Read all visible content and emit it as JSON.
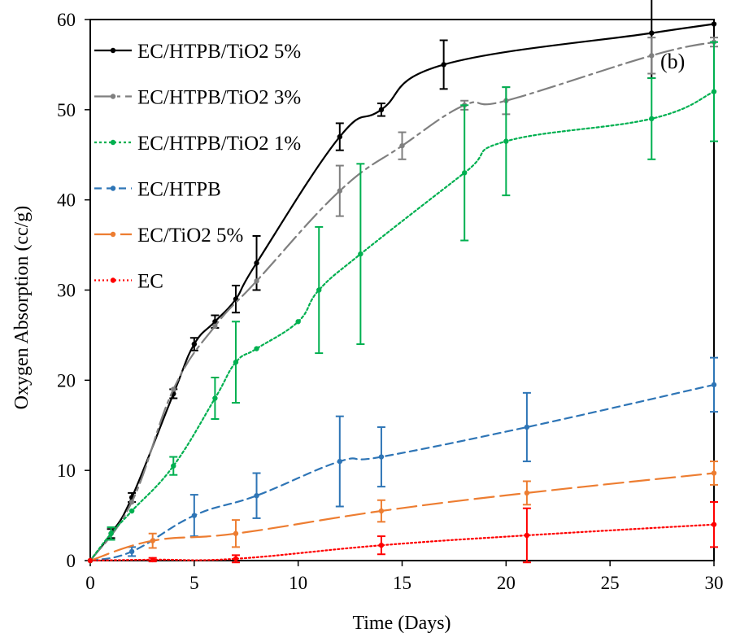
{
  "chart_data": {
    "type": "line",
    "title": "",
    "xlabel": "Time (Days)",
    "ylabel": "Oxygen Absorption (cc/g)",
    "xlim": [
      0,
      30
    ],
    "ylim": [
      0,
      60
    ],
    "xticks": [
      0,
      5,
      10,
      15,
      20,
      25,
      30
    ],
    "yticks": [
      0,
      10,
      20,
      30,
      40,
      50,
      60
    ],
    "grid": false,
    "legend_position": "top-left",
    "annotation": "(b)",
    "series": [
      {
        "name": "EC/HTPB/TiO2 5%",
        "color": "#000000",
        "dash": "",
        "marker": "circle",
        "x": [
          0,
          1,
          2,
          4,
          5,
          6,
          7,
          8,
          12,
          14,
          17,
          27,
          30
        ],
        "y": [
          0,
          3,
          7,
          18.5,
          24,
          26.5,
          29,
          33,
          47,
          50,
          55,
          58.5,
          59.5
        ],
        "err": [
          0,
          0.5,
          0.5,
          0.5,
          0.7,
          0.7,
          1.5,
          3,
          1.5,
          0.7,
          2.7,
          5,
          0
        ],
        "errbars": [
          false,
          true,
          true,
          true,
          true,
          true,
          true,
          true,
          true,
          true,
          true,
          true,
          false
        ]
      },
      {
        "name": "EC/HTPB/TiO2 3%",
        "color": "#7f7f7f",
        "dash": "22,6,4,6",
        "marker": "circle",
        "x": [
          0,
          2,
          4,
          6,
          8,
          12,
          15,
          18,
          20,
          27,
          30
        ],
        "y": [
          0,
          6.5,
          19,
          26,
          31,
          41,
          46,
          50.5,
          51,
          56,
          57.5
        ],
        "err": [
          0,
          0.3,
          0.3,
          0.7,
          1,
          2.8,
          1.5,
          0.5,
          1.5,
          2,
          0.5
        ],
        "errbars": [
          false,
          false,
          false,
          false,
          false,
          true,
          true,
          true,
          true,
          true,
          true
        ]
      },
      {
        "name": "EC/HTPB/TiO2 1%",
        "color": "#00b050",
        "dash": "3,3",
        "marker": "circle",
        "x": [
          0,
          1,
          2,
          4,
          6,
          7,
          8,
          10,
          11,
          13,
          18,
          20,
          27,
          30
        ],
        "y": [
          0,
          3,
          5.5,
          10.5,
          18,
          22,
          23.5,
          26.5,
          30,
          34,
          43,
          46.5,
          49,
          52
        ],
        "err": [
          0,
          0.7,
          0.5,
          1,
          2.3,
          4.5,
          0,
          0,
          7,
          10,
          7.5,
          6,
          4.5,
          5.5
        ],
        "errbars": [
          false,
          true,
          false,
          true,
          true,
          true,
          false,
          false,
          true,
          true,
          true,
          true,
          true,
          true
        ]
      },
      {
        "name": "EC/HTPB",
        "color": "#2e75b6",
        "dash": "9,6",
        "marker": "circle",
        "x": [
          0,
          2,
          5,
          8,
          12,
          14,
          21,
          30
        ],
        "y": [
          0,
          1,
          5,
          7.2,
          11,
          11.5,
          14.8,
          19.5
        ],
        "err": [
          0,
          0.5,
          2.3,
          2.5,
          5,
          3.3,
          3.8,
          3
        ],
        "errbars": [
          false,
          true,
          true,
          true,
          true,
          true,
          true,
          true
        ]
      },
      {
        "name": "EC/TiO2 5%",
        "color": "#ed7d31",
        "dash": "24,8",
        "marker": "circle",
        "x": [
          0,
          3,
          7,
          14,
          21,
          30
        ],
        "y": [
          0,
          2.2,
          3,
          5.5,
          7.5,
          9.7
        ],
        "err": [
          0,
          0.8,
          1.5,
          1.2,
          1.3,
          1.3
        ],
        "errbars": [
          false,
          true,
          true,
          true,
          true,
          true
        ]
      },
      {
        "name": "EC",
        "color": "#ff0000",
        "dash": "2,3",
        "marker": "circle",
        "x": [
          0,
          3,
          7,
          14,
          21,
          30
        ],
        "y": [
          0,
          0.1,
          0.2,
          1.7,
          2.8,
          4
        ],
        "err": [
          0,
          0.2,
          0.4,
          1,
          3,
          2.5
        ],
        "errbars": [
          false,
          true,
          true,
          true,
          true,
          true
        ]
      }
    ]
  }
}
